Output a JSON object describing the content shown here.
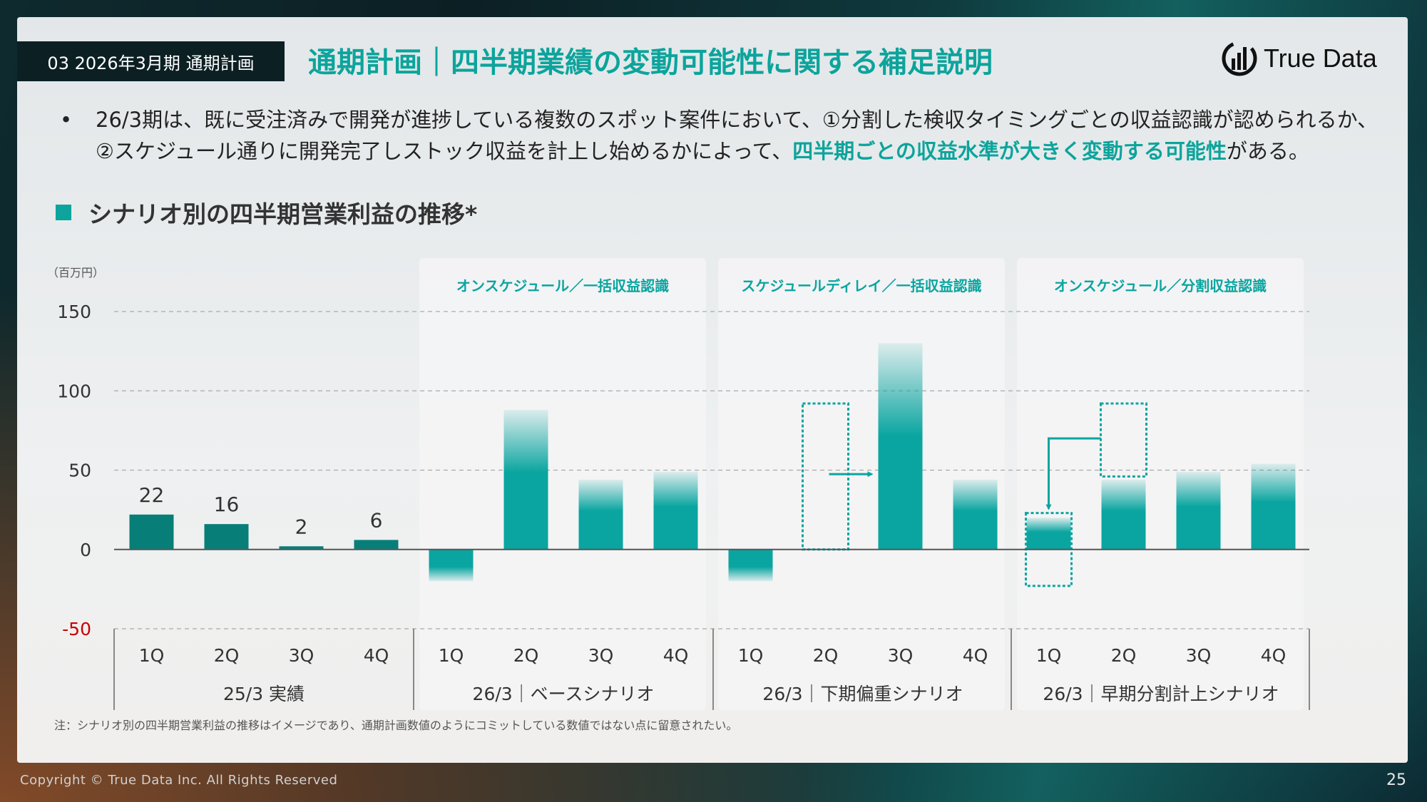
{
  "header": {
    "section_tag": "03 2026年3月期 通期計画",
    "title": "通期計画｜四半期業績の変動可能性に関する補足説明",
    "logo_text": "True Data"
  },
  "bullet": {
    "marker": "•",
    "line1": "26/3期は、既に受注済みで開発が進捗している複数のスポット案件において、①分割した検収タイミングごとの収益認識が認められるか、",
    "line2_pre": "②スケジュール通りに開発完了しストック収益を計上し始めるかによって、",
    "line2_highlight": "四半期ごとの収益水準が大きく変動する可能性",
    "line2_post": "がある。"
  },
  "section_heading": "シナリオ別の四半期営業利益の推移*",
  "chart_data": {
    "type": "bar",
    "unit_label": "（百万円）",
    "ylim": [
      -50,
      150
    ],
    "yticks": [
      "150",
      "100",
      "50",
      "0",
      "-50"
    ],
    "ytick_values": [
      150,
      100,
      50,
      0,
      -50
    ],
    "grid": "dashed",
    "groups": [
      {
        "label": "25/3 実績",
        "panel_title": "",
        "categories": [
          "1Q",
          "2Q",
          "3Q",
          "4Q"
        ],
        "values": [
          22,
          16,
          2,
          6
        ],
        "data_labels": [
          "22",
          "16",
          "2",
          "6"
        ],
        "style": "actual"
      },
      {
        "label": "26/3｜ベースシナリオ",
        "panel_title": "オンスケジュール／一括収益認識",
        "categories": [
          "1Q",
          "2Q",
          "3Q",
          "4Q"
        ],
        "values": [
          -20,
          88,
          44,
          49
        ],
        "style": "scenario"
      },
      {
        "label": "26/3｜下期偏重シナリオ",
        "panel_title": "スケジュールディレイ／一括収益認識",
        "categories": [
          "1Q",
          "2Q",
          "3Q",
          "4Q"
        ],
        "values": [
          -20,
          0,
          130,
          44
        ],
        "style": "scenario",
        "dotted_boxes": [
          {
            "category": "2Q",
            "from": 0,
            "to": 92
          }
        ],
        "arrow": "2Q → 3Q"
      },
      {
        "label": "26/3｜早期分割計上シナリオ",
        "panel_title": "オンスケジュール／分割収益認識",
        "categories": [
          "1Q",
          "2Q",
          "3Q",
          "4Q"
        ],
        "values": [
          20,
          44,
          49,
          54
        ],
        "style": "scenario",
        "dotted_boxes": [
          {
            "category": "1Q",
            "from": -23,
            "to": 23
          },
          {
            "category": "2Q",
            "from": 46,
            "to": 92
          }
        ],
        "arrow": "2Q → 1Q"
      }
    ],
    "colors": {
      "actual": "#087e79",
      "scenario": "#0aa5a0",
      "negative_tick": "#cc0000"
    }
  },
  "footnote": "注：シナリオ別の四半期営業利益の推移はイメージであり、通期計画数値のようにコミットしている数値ではない点に留意されたい。",
  "footer": {
    "copyright": "Copyright © True Data Inc. All Rights Reserved",
    "page": "25"
  }
}
